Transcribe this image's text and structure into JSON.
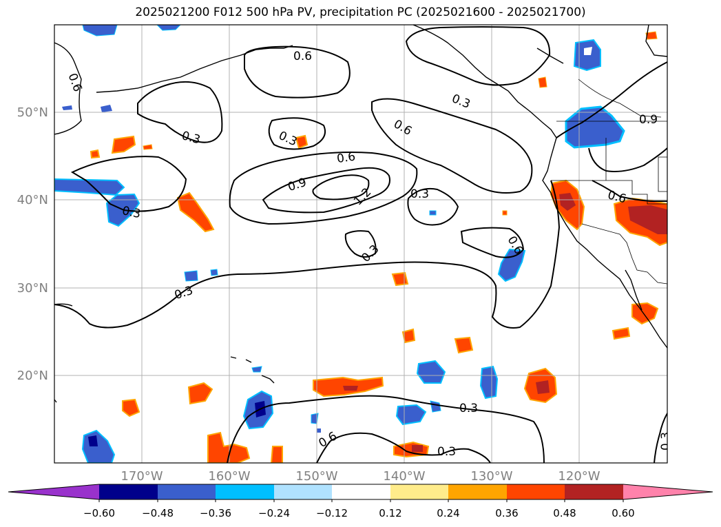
{
  "title": "2025021200 F012 500 hPa PV, precipitation PC (2025021600 - 2025021700)",
  "map": {
    "lat_ticks": [
      "50°N",
      "40°N",
      "30°N",
      "20°N"
    ],
    "lon_ticks": [
      "170°W",
      "160°W",
      "150°W",
      "140°W",
      "130°W",
      "120°W"
    ],
    "contour_labels": [
      "0.6",
      "0.6",
      "0.3",
      "0.3",
      "0.3",
      "0.6",
      "0.3",
      "0.6",
      "0.9",
      "0.9",
      "1.2",
      "0.3",
      "0.3",
      "0.6",
      "0.6",
      "0.3",
      "0.3",
      "0.6",
      "0.3",
      "0.3"
    ]
  },
  "colorbar": {
    "colors": [
      "#9932cc",
      "#00008b",
      "#3a5fcd",
      "#00bfff",
      "#b0e2ff",
      "#ffffff",
      "#ffec8b",
      "#ffa500",
      "#ff4500",
      "#b22222",
      "#ff82ab"
    ],
    "tick_labels": [
      "−0.60",
      "−0.48",
      "−0.36",
      "−0.24",
      "−0.12",
      "0.12",
      "0.24",
      "0.36",
      "0.48",
      "0.60"
    ]
  }
}
